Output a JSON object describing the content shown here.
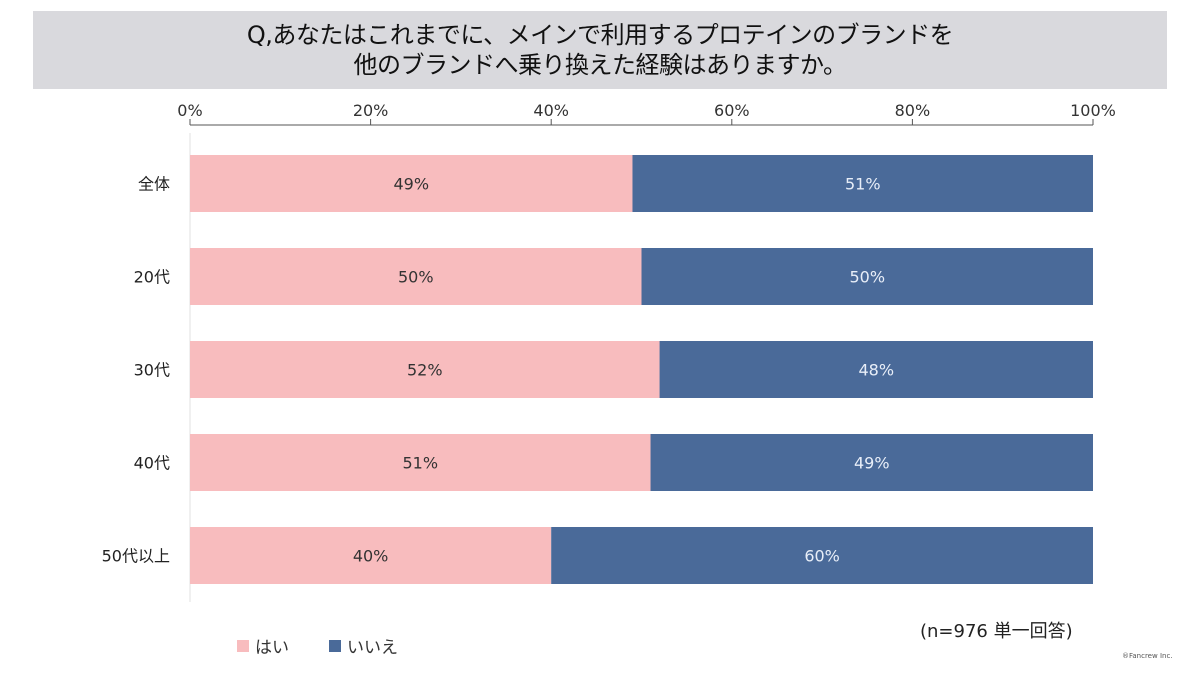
{
  "title": {
    "line1": "Q,あなたはこれまでに、メインで利用するプロテインのブランドを",
    "line2": "他のブランドへ乗り換えた経験はありますか。"
  },
  "colors": {
    "yes": "#f8bcbe",
    "no": "#4a6a99",
    "title_bg": "#d9d9dd"
  },
  "note": "(n=976 単一回答)",
  "copyright": "®Fancrew Inc.",
  "legend": [
    {
      "label": "はい",
      "color": "#f8bcbe"
    },
    {
      "label": "いいえ",
      "color": "#4a6a99"
    }
  ],
  "chart_data": {
    "type": "bar",
    "orientation": "horizontal",
    "stacked": "100%",
    "title": "Q,あなたはこれまでに、メインで利用するプロテインのブランドを他のブランドへ乗り換えた経験はありますか。",
    "categories": [
      "全体",
      "20代",
      "30代",
      "40代",
      "50代以上"
    ],
    "series": [
      {
        "name": "はい",
        "values": [
          49,
          50,
          52,
          51,
          40
        ],
        "labels": [
          "49%",
          "50%",
          "52%",
          "51%",
          "40%"
        ]
      },
      {
        "name": "いいえ",
        "values": [
          51,
          50,
          48,
          49,
          60
        ],
        "labels": [
          "51%",
          "50%",
          "48%",
          "49%",
          "60%"
        ]
      }
    ],
    "xlim": [
      0,
      100
    ],
    "xticks": [
      "0%",
      "20%",
      "40%",
      "60%",
      "80%",
      "100%"
    ],
    "xlabel": "",
    "ylabel": "",
    "axis_position": "top",
    "legend_position": "bottom-left",
    "grid": false
  }
}
